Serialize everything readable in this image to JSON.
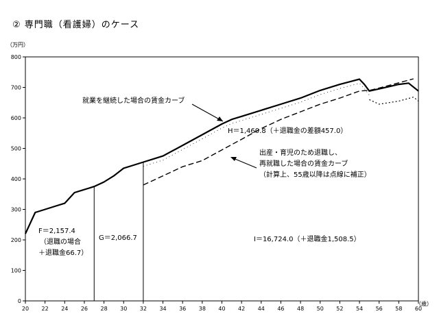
{
  "title": "② 専門職（看護婦）のケース",
  "chart_data": {
    "type": "line",
    "ylabel": "（万円）",
    "xlabel": "（歳）",
    "xlim": [
      20,
      60
    ],
    "ylim": [
      0,
      800
    ],
    "xticks": [
      20,
      22,
      24,
      26,
      28,
      30,
      32,
      34,
      36,
      38,
      40,
      42,
      44,
      46,
      48,
      50,
      52,
      54,
      56,
      58,
      60
    ],
    "yticks": [
      0,
      100,
      200,
      300,
      400,
      500,
      600,
      700,
      800
    ],
    "series": [
      {
        "name": "就業を継続した場合の賃金カーブ",
        "style": "solid",
        "x": [
          20,
          21,
          22,
          23,
          24,
          25,
          26,
          27,
          28,
          29,
          30,
          31,
          32,
          33,
          34,
          36,
          38,
          40,
          41,
          42,
          44,
          46,
          48,
          50,
          52,
          54,
          54.5,
          55,
          56,
          58,
          59,
          60
        ],
        "y": [
          220,
          290,
          300,
          310,
          320,
          355,
          365,
          375,
          390,
          410,
          435,
          445,
          455,
          465,
          475,
          510,
          545,
          580,
          595,
          605,
          625,
          645,
          665,
          690,
          710,
          727,
          710,
          688,
          695,
          710,
          714,
          688
        ]
      },
      {
        "name": "出産・育児のため退職し、再就職した場合の賃金カーブ",
        "style": "dashed",
        "x": [
          32,
          34,
          36,
          38,
          40,
          42,
          44,
          46,
          48,
          50,
          52,
          54,
          55,
          56,
          58,
          59.5
        ],
        "y": [
          380,
          410,
          440,
          460,
          495,
          530,
          565,
          595,
          620,
          645,
          665,
          688,
          690,
          698,
          715,
          728
        ]
      },
      {
        "name": "点線補正",
        "style": "dotted",
        "x": [
          55,
          56,
          58,
          59.5,
          60
        ],
        "y": [
          660,
          645,
          655,
          668,
          655
        ]
      }
    ],
    "markers": [
      {
        "x": 27,
        "y": 375
      },
      {
        "x": 32,
        "y": 455
      }
    ],
    "annotations": {
      "solid_label": "就業を継続した場合の賃金カーブ",
      "H": "H＝1,460.8（＋退職金の差額457.0）",
      "dashed_label_1": "出産・育児のため退職し、",
      "dashed_label_2": "再就職した場合の賃金カーブ",
      "dashed_label_3": "（計算上、55歳以降は点線に補正）",
      "F_1": "F＝2,157.4",
      "F_2": "（退職の場合",
      "F_3": "＋退職金66.7）",
      "G": "G＝2,066.7",
      "I": "I＝16,724.0（＋退職金1,508.5）"
    }
  }
}
